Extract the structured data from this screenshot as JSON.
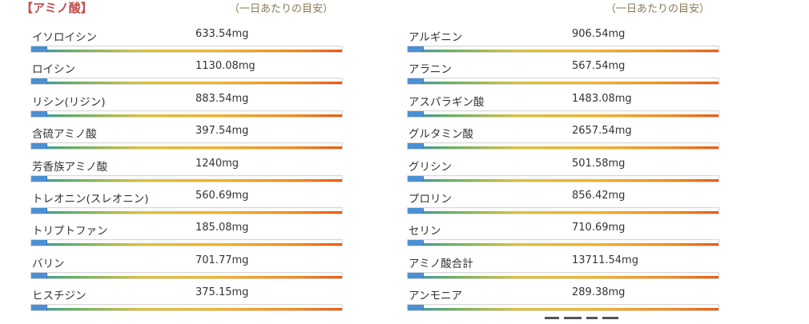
{
  "header": {
    "section_title": "【アミノ酸】",
    "left_guide": "（一日あたりの目安）",
    "right_guide": "（一日あたりの目安）"
  },
  "colors": {
    "title": "#c0504d",
    "guide": "#8a7a52",
    "bar_fill": "#4a90d4",
    "gradient_start": "#2e8fc4",
    "gradient_mid": "#f4b324",
    "gradient_end": "#ee5a10"
  },
  "left_column": [
    {
      "name": "イソロイシン",
      "value": "633.54mg",
      "fill_fraction": 0.05
    },
    {
      "name": "ロイシン",
      "value": "1130.08mg",
      "fill_fraction": 0.05
    },
    {
      "name": "リシン(リジン)",
      "value": "883.54mg",
      "fill_fraction": 0.05
    },
    {
      "name": "含硫アミノ酸",
      "value": "397.54mg",
      "fill_fraction": 0.05
    },
    {
      "name": "芳香族アミノ酸",
      "value": "1240mg",
      "fill_fraction": 0.05
    },
    {
      "name": "トレオニン(スレオニン)",
      "value": "560.69mg",
      "fill_fraction": 0.05
    },
    {
      "name": "トリプトファン",
      "value": "185.08mg",
      "fill_fraction": 0.05
    },
    {
      "name": "バリン",
      "value": "701.77mg",
      "fill_fraction": 0.05
    },
    {
      "name": "ヒスチジン",
      "value": "375.15mg",
      "fill_fraction": 0.05
    }
  ],
  "right_column": [
    {
      "name": "アルギニン",
      "value": "906.54mg",
      "fill_fraction": 0.05
    },
    {
      "name": "アラニン",
      "value": "567.54mg",
      "fill_fraction": 0.05
    },
    {
      "name": "アスパラギン酸",
      "value": "1483.08mg",
      "fill_fraction": 0.05
    },
    {
      "name": "グルタミン酸",
      "value": "2657.54mg",
      "fill_fraction": 0.05
    },
    {
      "name": "グリシン",
      "value": "501.58mg",
      "fill_fraction": 0.05
    },
    {
      "name": "プロリン",
      "value": "856.42mg",
      "fill_fraction": 0.05
    },
    {
      "name": "セリン",
      "value": "710.69mg",
      "fill_fraction": 0.05
    },
    {
      "name": "アミノ酸合計",
      "value": "13711.54mg",
      "fill_fraction": 0.05
    },
    {
      "name": "アンモニア",
      "value": "289.38mg",
      "fill_fraction": 0.05
    }
  ]
}
